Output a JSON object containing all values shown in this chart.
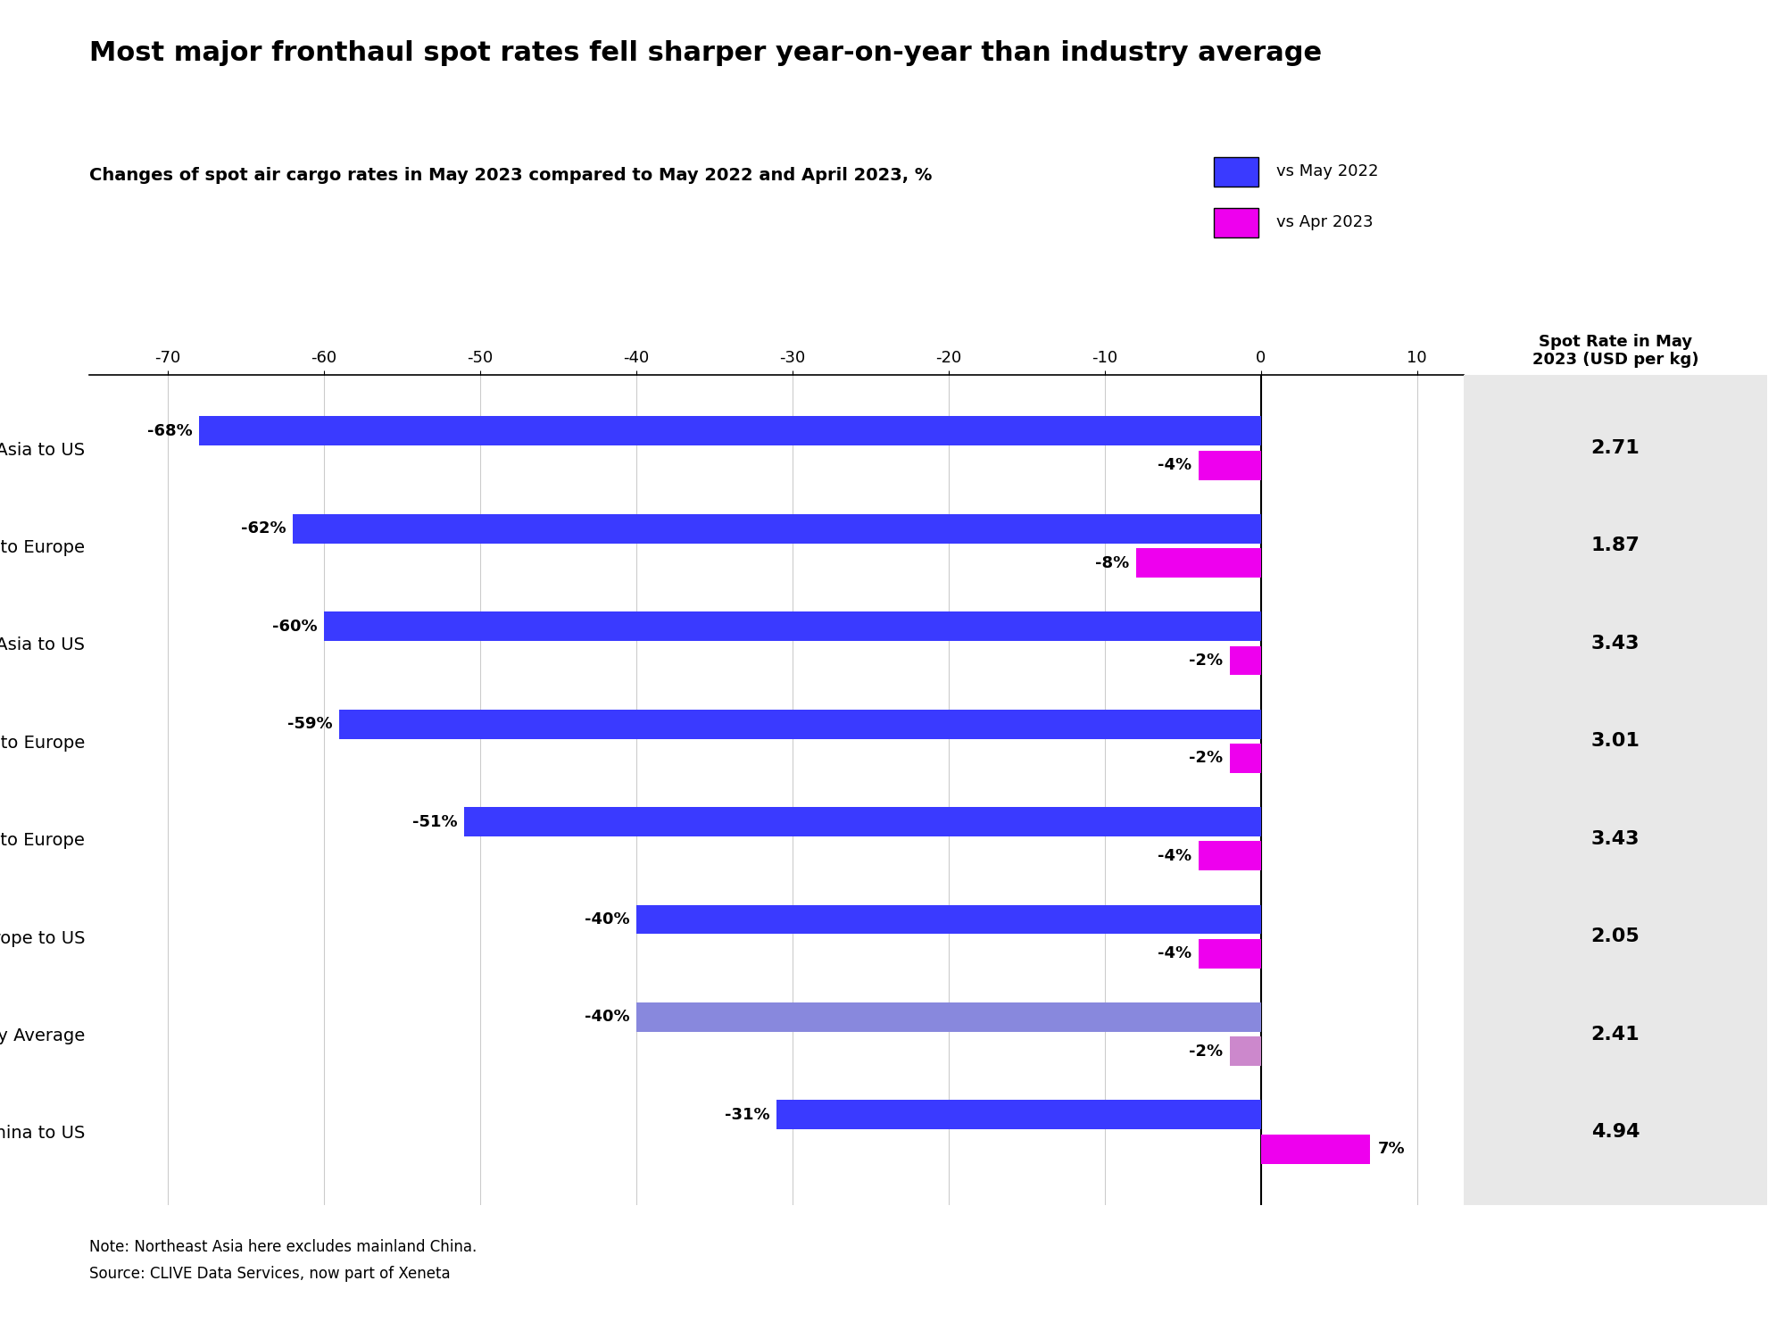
{
  "title": "Most major fronthaul spot rates fell sharper year-on-year than industry average",
  "subtitle_bold": "Changes of spot air cargo rates in May 2023 compared to May 2022 and April 2023,",
  "subtitle_unit": " %",
  "categories": [
    "Southeast Asia to US",
    "Southeast Asia to Europe",
    "*Northeast Asia to US",
    "China to Europe",
    "*Northeast Asia to Europe",
    "Europe to US",
    "Industry Average",
    "China to US"
  ],
  "vs_may2022": [
    -68,
    -62,
    -60,
    -59,
    -51,
    -40,
    -40,
    -31
  ],
  "vs_apr2023": [
    -4,
    -8,
    -2,
    -2,
    -4,
    -4,
    -2,
    7
  ],
  "spot_rates": [
    2.71,
    1.87,
    3.43,
    3.01,
    3.43,
    2.05,
    2.41,
    4.94
  ],
  "blue_color": "#3A3AFF",
  "light_blue_color": "#8888DD",
  "magenta_color": "#EE00EE",
  "light_magenta_color": "#CC88CC",
  "grid_color": "#CCCCCC",
  "background_color": "#FFFFFF",
  "table_bg_color": "#E8E8E8",
  "xlim": [
    -75,
    13
  ],
  "xticks": [
    -70,
    -60,
    -50,
    -40,
    -30,
    -20,
    -10,
    0,
    10
  ],
  "note_line1": "Note: Northeast Asia here excludes mainland China.",
  "note_line2": "Source: CLIVE Data Services, now part of Xeneta",
  "table_header_line1": "Spot Rate in May",
  "table_header_line2": "2023 (USD per kg)",
  "legend_may2022": "vs May 2022",
  "legend_apr2023": "vs Apr 2023"
}
